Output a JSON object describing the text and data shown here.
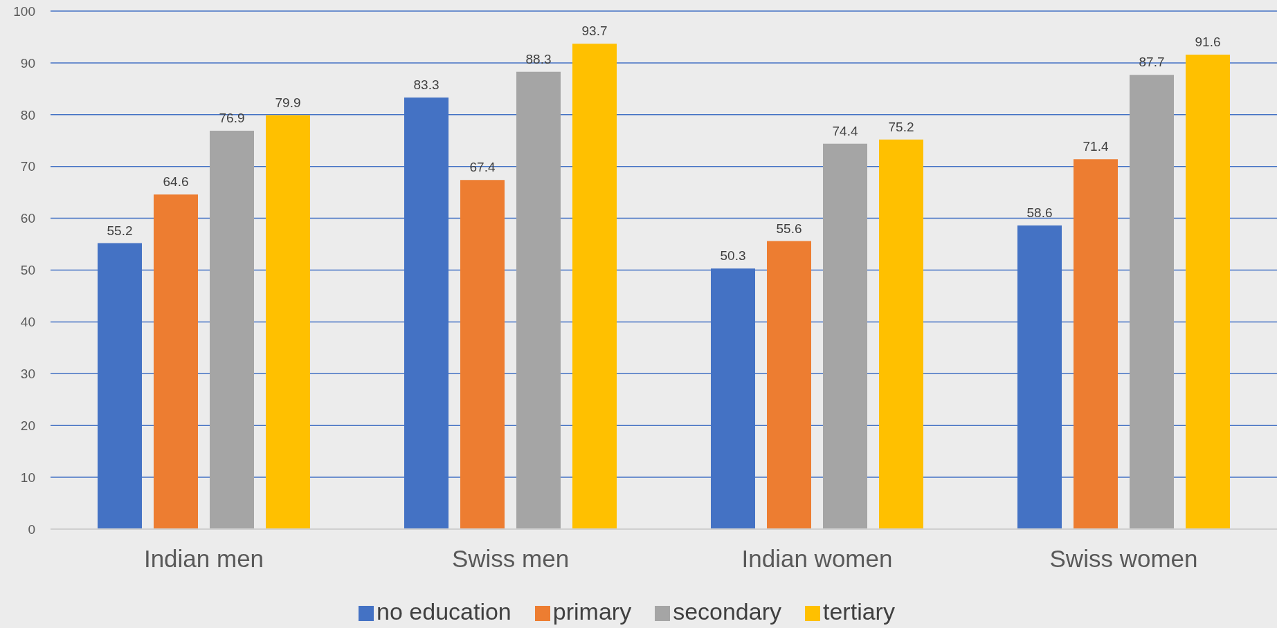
{
  "chart_data": {
    "type": "bar",
    "categories": [
      "Indian men",
      "Swiss men",
      "Indian women",
      "Swiss women"
    ],
    "series": [
      {
        "name": "no education",
        "color": "#4472c4",
        "values": [
          55.2,
          83.3,
          50.3,
          58.6
        ]
      },
      {
        "name": "primary",
        "color": "#ed7d31",
        "values": [
          64.6,
          67.4,
          55.6,
          71.4
        ]
      },
      {
        "name": "secondary",
        "color": "#a5a5a5",
        "values": [
          76.9,
          88.3,
          74.4,
          87.7
        ]
      },
      {
        "name": "tertiary",
        "color": "#ffc000",
        "values": [
          79.9,
          93.7,
          75.2,
          91.6
        ]
      }
    ],
    "ylim": [
      0,
      100
    ],
    "yticks": [
      0,
      10,
      20,
      30,
      40,
      50,
      60,
      70,
      80,
      90,
      100
    ],
    "grid": "y",
    "legend": "bottom",
    "data_labels": true
  }
}
